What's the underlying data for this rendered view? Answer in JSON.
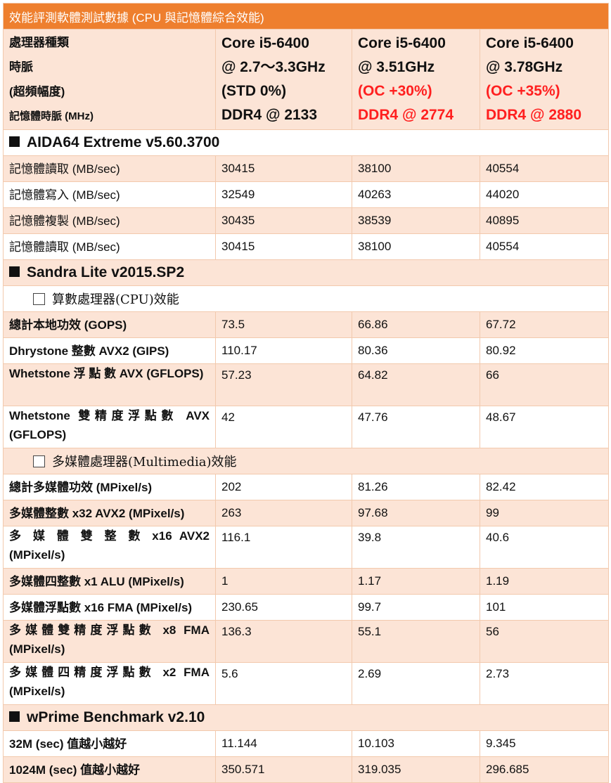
{
  "title": "效能評測軟體測試數據 (CPU 與記憶體綜合效能)",
  "header": {
    "labels": [
      "處理器種類",
      "時脈",
      "(超頻幅度)",
      "記憶體時脈 (MHz)"
    ],
    "configs": [
      {
        "cpu": "Core i5-6400",
        "clock": "@ 2.7～3.3GHz",
        "oc": "(STD 0%)",
        "mem": "DDR4 @ 2133"
      },
      {
        "cpu": "Core i5-6400",
        "clock": "@ 3.51GHz",
        "oc": "(OC +30%)",
        "mem": "DDR4 @ 2774"
      },
      {
        "cpu": "Core i5-6400",
        "clock": "@ 3.78GHz",
        "oc": "(OC +35%)",
        "mem": "DDR4 @ 2880"
      }
    ],
    "highlight_color": "#ff1f1f"
  },
  "sections": {
    "aida": {
      "name": "AIDA64 Extreme v5.60.3700",
      "rows": [
        {
          "label": "記憶體讀取 (MB/sec)",
          "values": [
            "30415",
            "38100",
            "40554"
          ]
        },
        {
          "label": "記憶體寫入 (MB/sec)",
          "values": [
            "32549",
            "40263",
            "44020"
          ]
        },
        {
          "label": "記憶體複製 (MB/sec)",
          "values": [
            "30435",
            "38539",
            "40895"
          ]
        },
        {
          "label": "記憶體讀取 (MB/sec)",
          "values": [
            "30415",
            "38100",
            "40554"
          ]
        }
      ]
    },
    "sandra": {
      "name": "Sandra Lite v2015.SP2",
      "cpu_sub": "算數處理器(CPU)效能",
      "cpu_rows": [
        {
          "label": "總計本地功效 (GOPS)",
          "values": [
            "73.5",
            "66.86",
            "67.72"
          ]
        },
        {
          "label": "Dhrystone 整數 AVX2 (GIPS)",
          "values": [
            "110.17",
            "80.36",
            "80.92"
          ]
        },
        {
          "label": "Whetstone 浮 點 數 AVX (GFLOPS)",
          "values": [
            "57.23",
            "64.82",
            "66"
          ]
        },
        {
          "label": "Whetstone 雙精度浮點數 AVX (GFLOPS)",
          "values": [
            "42",
            "47.76",
            "48.67"
          ]
        }
      ],
      "mm_sub": "多媒體處理器(Multimedia)效能",
      "mm_rows": [
        {
          "label": "總計多媒體功效 (MPixel/s)",
          "values": [
            "202",
            "81.26",
            "82.42"
          ]
        },
        {
          "label": "多媒體整數 x32 AVX2 (MPixel/s)",
          "values": [
            "263",
            "97.68",
            "99"
          ]
        },
        {
          "label": "多 媒 體 雙 整 數 x16 AVX2 (MPixel/s)",
          "values": [
            "116.1",
            "39.8",
            "40.6"
          ]
        },
        {
          "label": "多媒體四整數 x1 ALU (MPixel/s)",
          "values": [
            "1",
            "1.17",
            "1.19"
          ]
        },
        {
          "label": "多媒體浮點數 x16 FMA (MPixel/s)",
          "values": [
            "230.65",
            "99.7",
            "101"
          ]
        },
        {
          "label": "多媒體雙精度浮點數 x8 FMA (MPixel/s)",
          "values": [
            "136.3",
            "55.1",
            "56"
          ]
        },
        {
          "label": "多媒體四精度浮點數 x2 FMA (MPixel/s)",
          "values": [
            "5.6",
            "2.69",
            "2.73"
          ]
        }
      ]
    },
    "wprime": {
      "name": "wPrime Benchmark v2.10",
      "rows": [
        {
          "label": "32M (sec) 值越小越好",
          "values": [
            "11.144",
            "10.103",
            "9.345"
          ]
        },
        {
          "label": "1024M (sec) 值越小越好",
          "values": [
            "350.571",
            "319.035",
            "296.685"
          ]
        }
      ]
    }
  },
  "colors": {
    "title_bg": "#ee7f2e",
    "band": "#fce4d6",
    "border": "#f2c9ad"
  }
}
